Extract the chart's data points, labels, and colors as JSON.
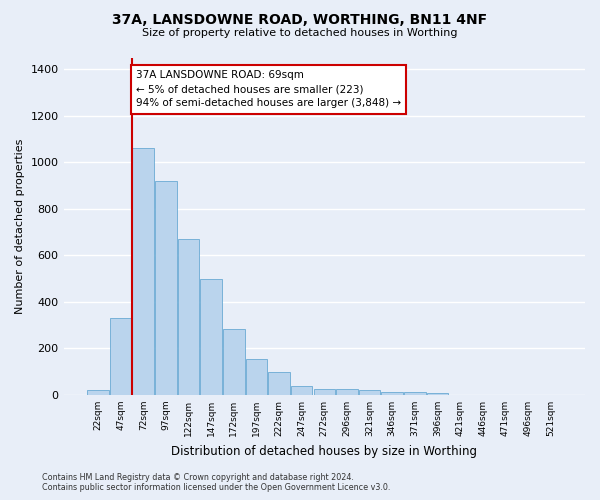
{
  "title": "37A, LANSDOWNE ROAD, WORTHING, BN11 4NF",
  "subtitle": "Size of property relative to detached houses in Worthing",
  "xlabel": "Distribution of detached houses by size in Worthing",
  "ylabel": "Number of detached properties",
  "footer_line1": "Contains HM Land Registry data © Crown copyright and database right 2024.",
  "footer_line2": "Contains public sector information licensed under the Open Government Licence v3.0.",
  "categories": [
    "22sqm",
    "47sqm",
    "72sqm",
    "97sqm",
    "122sqm",
    "147sqm",
    "172sqm",
    "197sqm",
    "222sqm",
    "247sqm",
    "272sqm",
    "296sqm",
    "321sqm",
    "346sqm",
    "371sqm",
    "396sqm",
    "421sqm",
    "446sqm",
    "471sqm",
    "496sqm",
    "521sqm"
  ],
  "values": [
    22,
    330,
    1062,
    920,
    668,
    500,
    285,
    155,
    100,
    38,
    25,
    25,
    20,
    13,
    12,
    8,
    0,
    0,
    0,
    0,
    0
  ],
  "bar_color": "#bad4ed",
  "bar_edge_color": "#6aaad4",
  "background_color": "#e8eef8",
  "grid_color": "#ffffff",
  "vline_color": "#cc0000",
  "annotation_line1": "37A LANSDOWNE ROAD: 69sqm",
  "annotation_line2": "← 5% of detached houses are smaller (223)",
  "annotation_line3": "94% of semi-detached houses are larger (3,848) →",
  "annotation_box_color": "#ffffff",
  "annotation_box_edge": "#cc0000",
  "ylim": [
    0,
    1450
  ],
  "yticks": [
    0,
    200,
    400,
    600,
    800,
    1000,
    1200,
    1400
  ]
}
